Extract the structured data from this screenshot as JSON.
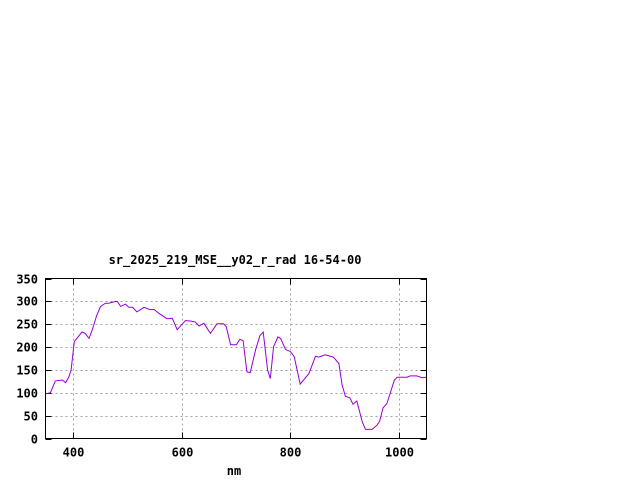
{
  "chart_data": {
    "type": "line",
    "title": "sr_2025_219_MSE__y02_r_rad 16-54-00",
    "xlabel": "nm",
    "ylabel": "",
    "xlim": [
      350,
      1050
    ],
    "ylim": [
      0,
      350
    ],
    "xticks": [
      400,
      600,
      800,
      1000
    ],
    "yticks": [
      0,
      50,
      100,
      150,
      200,
      250,
      300,
      350
    ],
    "grid": true,
    "line_color": "#9400d3",
    "x": [
      351,
      359,
      368,
      381,
      387,
      393,
      397,
      403,
      417,
      423,
      430,
      436,
      444,
      451,
      460,
      466,
      479,
      482,
      488,
      497,
      503,
      510,
      518,
      531,
      542,
      550,
      558,
      573,
      583,
      592,
      607,
      616,
      625,
      632,
      641,
      653,
      665,
      677,
      682,
      690,
      701,
      707,
      713,
      720,
      726,
      736,
      744,
      750,
      758,
      763,
      769,
      777,
      782,
      791,
      800,
      807,
      818,
      834,
      846,
      852,
      864,
      879,
      889,
      895,
      901,
      909,
      915,
      922,
      932,
      938,
      950,
      959,
      964,
      970,
      977,
      991,
      996,
      1014,
      1020,
      1032,
      1042,
      1049
    ],
    "y": [
      98,
      100,
      126,
      128,
      122,
      135,
      150,
      212,
      233,
      230,
      219,
      238,
      269,
      289,
      296,
      296,
      300,
      300,
      289,
      294,
      287,
      287,
      277,
      287,
      282,
      282,
      274,
      262,
      263,
      238,
      258,
      257,
      255,
      246,
      252,
      230,
      251,
      251,
      245,
      205,
      205,
      217,
      214,
      146,
      144,
      194,
      225,
      233,
      150,
      131,
      201,
      222,
      219,
      195,
      190,
      179,
      119,
      142,
      180,
      178,
      183,
      178,
      164,
      117,
      92,
      89,
      75,
      82,
      36,
      20,
      20,
      29,
      38,
      67,
      76,
      128,
      134,
      134,
      137,
      137,
      133,
      134
    ]
  }
}
